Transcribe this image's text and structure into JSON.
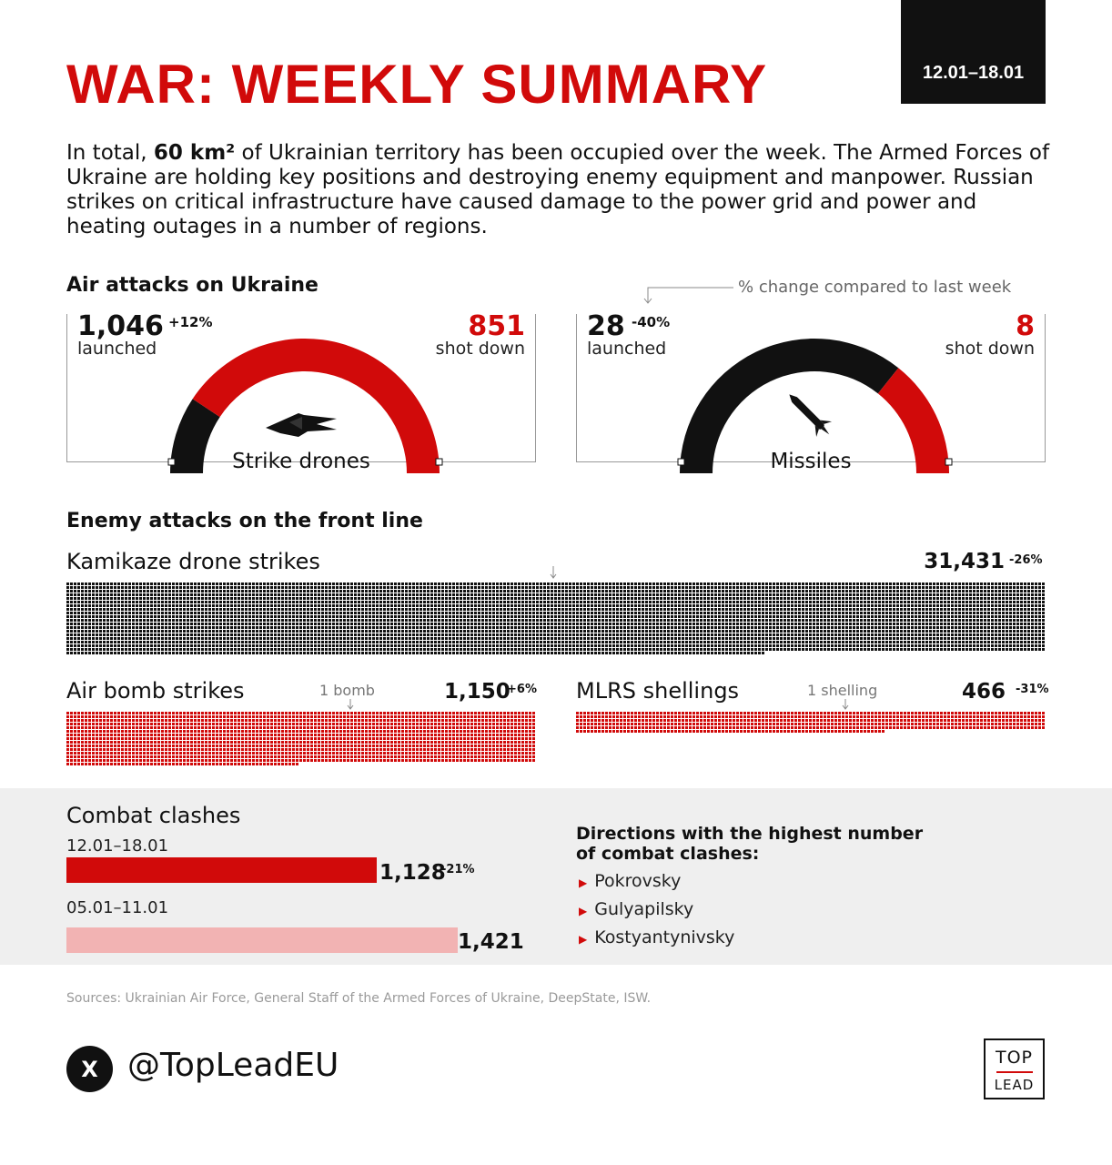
{
  "header": {
    "title": "WAR: WEEKLY SUMMARY",
    "date_range": "12.01–18.01"
  },
  "intro": {
    "pre": "In total, ",
    "bold": "60 km²",
    "post": " of Ukrainian territory has been occupied over the week. The Armed Forces of Ukraine are holding key positions and destroying enemy equipment and manpower. Russian strikes on critical infrastructure have caused damage to the power grid and power and heating outages in a number of regions."
  },
  "air_attacks": {
    "heading": "Air attacks on Ukraine",
    "legend_note": "% change compared to last week",
    "drones": {
      "launched_value": "1,046",
      "launched_change": "+12%",
      "launched_label": "launched",
      "shot_value": "851",
      "shot_label": "shot down",
      "name": "Strike drones",
      "launched": 1046,
      "shot_down": 851,
      "icon": "drone-icon"
    },
    "missiles": {
      "launched_value": "28",
      "launched_change": "-40%",
      "launched_label": "launched",
      "shot_value": "8",
      "shot_label": "shot down",
      "name": "Missiles",
      "launched": 28,
      "shot_down": 8,
      "icon": "missile-icon"
    }
  },
  "front_line": {
    "heading": "Enemy attacks on the front line",
    "kamikaze": {
      "label": "Kamikaze drone strikes",
      "value": "31,431",
      "change": "-26%",
      "count": 31431
    },
    "air_bombs": {
      "label": "Air bomb strikes",
      "unit_note": "1 bomb",
      "value": "1,150",
      "change": "+6%",
      "count": 1150
    },
    "mlrs": {
      "label": "MLRS shellings",
      "unit_note": "1 shelling",
      "value": "466",
      "change": "-31%",
      "count": 466
    }
  },
  "combat": {
    "heading": "Combat clashes",
    "current": {
      "period": "12.01–18.01",
      "value": "1,128",
      "change": "-21%",
      "count": 1128
    },
    "previous": {
      "period": "05.01–11.01",
      "value": "1,421",
      "count": 1421
    },
    "directions_heading_1": "Directions with the highest number",
    "directions_heading_2": "of combat clashes:",
    "directions": [
      "Pokrovsky",
      "Gulyapilsky",
      "Kostyantynivsky"
    ]
  },
  "footer": {
    "sources": "Sources: Ukrainian Air Force, General Staff of the Armed Forces of Ukraine, DeepState, ISW.",
    "x_glyph": "X",
    "handle": "@TopLeadEU",
    "logo_top": "TOP",
    "logo_bottom": "LEAD"
  },
  "colors": {
    "accent_red": "#d10a0a",
    "dark": "#111111",
    "light_red": "#f2b3b3",
    "band_grey": "#efefef"
  }
}
